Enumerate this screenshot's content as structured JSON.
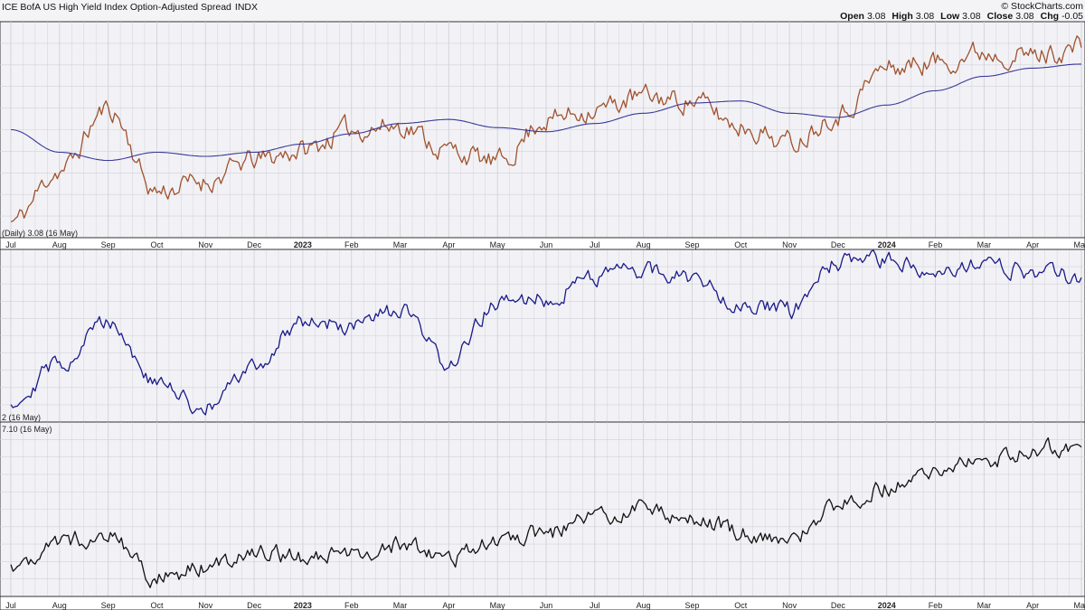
{
  "header": {
    "title": "ICE BofA US High Yield Index Option-Adjusted Spread",
    "exchange": "INDX",
    "brand": "© StockCharts.com",
    "ohlc_labels": [
      "Open",
      "High",
      "Low",
      "Close",
      "Chg"
    ],
    "ohlc_values": [
      "3.08",
      "3.08",
      "3.08",
      "3.08",
      "-0.05"
    ]
  },
  "panel_labels": {
    "top": "(Daily) 3.08 (16 May)",
    "middle": "2 (16 May)",
    "bottom": "7.10 (16 May)"
  },
  "axis": {
    "months": [
      "Jul",
      "Aug",
      "Sep",
      "Oct",
      "Nov",
      "Dec",
      "2023",
      "Feb",
      "Mar",
      "Apr",
      "May",
      "Jun",
      "Jul",
      "Aug",
      "Sep",
      "Oct",
      "Nov",
      "Dec",
      "2024",
      "Feb",
      "Mar",
      "Apr",
      "May"
    ],
    "bold_months": [
      "2023",
      "2024"
    ]
  },
  "colors": {
    "price": "#a0522d",
    "moving_average": "#3a3a9a",
    "middle_series": "#1a1a8a",
    "bottom_series": "#111111",
    "panel_bg": "#f2f2f6",
    "grid": "#d0d0d8"
  },
  "chart_data": [
    {
      "type": "line",
      "panel": "top",
      "title": "ICE BofA US High Yield Index Option-Adjusted Spread",
      "grid": true,
      "x": [
        "2022-07",
        "2022-08",
        "2022-09",
        "2022-10",
        "2022-11",
        "2022-12",
        "2023-01",
        "2023-02",
        "2023-03",
        "2023-04",
        "2023-05",
        "2023-06",
        "2023-07",
        "2023-08",
        "2023-09",
        "2023-10",
        "2023-11",
        "2023-12",
        "2024-01",
        "2024-02",
        "2024-03",
        "2024-04",
        "2024-05"
      ],
      "inverted_scale": true,
      "series": [
        {
          "values": [
            0.5,
            3.0,
            6.0,
            2.0,
            2.5,
            3.5,
            4.0,
            5.0,
            5.2,
            4.0,
            3.4,
            5.5,
            6.0,
            6.6,
            6.4,
            5.2,
            4.4,
            5.8,
            8.0,
            8.3,
            8.8,
            8.6,
            9.0
          ]
        },
        {
          "values": [
            5.0,
            3.9,
            3.5,
            3.9,
            3.7,
            3.9,
            4.3,
            4.8,
            5.3,
            5.5,
            5.1,
            4.9,
            5.3,
            5.8,
            6.3,
            6.4,
            5.8,
            5.6,
            6.2,
            6.9,
            7.6,
            8.0,
            8.2
          ]
        }
      ]
    },
    {
      "type": "line",
      "panel": "middle",
      "grid": true,
      "x": [
        "2022-07",
        "2022-08",
        "2022-09",
        "2022-10",
        "2022-11",
        "2022-12",
        "2023-01",
        "2023-02",
        "2023-03",
        "2023-04",
        "2023-05",
        "2023-06",
        "2023-07",
        "2023-08",
        "2023-09",
        "2023-10",
        "2023-11",
        "2023-12",
        "2024-01",
        "2024-02",
        "2024-03",
        "2024-04",
        "2024-05"
      ],
      "series": [
        {
          "values": [
            1.0,
            3.3,
            6.0,
            2.0,
            0.5,
            3.0,
            6.0,
            5.5,
            6.5,
            3.3,
            7.0,
            7.3,
            8.8,
            9.0,
            8.6,
            7.0,
            6.5,
            9.5,
            9.6,
            9.2,
            9.3,
            9.0,
            8.6
          ]
        }
      ]
    },
    {
      "type": "line",
      "panel": "bottom",
      "grid": true,
      "x": [
        "2022-07",
        "2022-08",
        "2022-09",
        "2022-10",
        "2022-11",
        "2022-12",
        "2023-01",
        "2023-02",
        "2023-03",
        "2023-04",
        "2023-05",
        "2023-06",
        "2023-07",
        "2023-08",
        "2023-09",
        "2023-10",
        "2023-11",
        "2023-12",
        "2024-01",
        "2024-02",
        "2024-03",
        "2024-04",
        "2024-05"
      ],
      "series": [
        {
          "values": [
            1.5,
            3.0,
            3.5,
            0.8,
            1.5,
            2.5,
            2.0,
            2.2,
            2.8,
            2.0,
            3.2,
            3.5,
            4.6,
            5.0,
            4.6,
            3.6,
            3.2,
            5.2,
            6.4,
            7.2,
            8.0,
            8.7,
            8.8
          ]
        }
      ]
    }
  ]
}
